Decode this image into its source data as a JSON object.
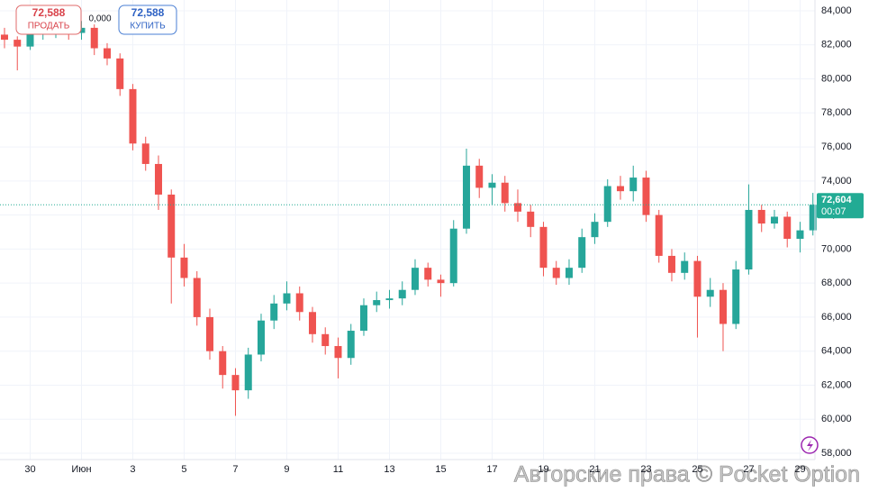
{
  "chart_data": {
    "type": "candlestick",
    "xticks": [
      {
        "value": 2,
        "label": "30"
      },
      {
        "value": 6,
        "label": "Июн"
      },
      {
        "value": 10,
        "label": "3"
      },
      {
        "value": 14,
        "label": "5"
      },
      {
        "value": 18,
        "label": "7"
      },
      {
        "value": 22,
        "label": "9"
      },
      {
        "value": 26,
        "label": "11"
      },
      {
        "value": 30,
        "label": "13"
      },
      {
        "value": 34,
        "label": "15"
      },
      {
        "value": 38,
        "label": "17"
      },
      {
        "value": 42,
        "label": "19"
      },
      {
        "value": 46,
        "label": "21"
      },
      {
        "value": 50,
        "label": "23"
      },
      {
        "value": 54,
        "label": "25"
      },
      {
        "value": 58,
        "label": "27"
      },
      {
        "value": 62,
        "label": "29"
      }
    ],
    "xlim": [
      -0.35,
      63.16
    ],
    "ylim": [
      57630,
      84635
    ],
    "yticks": [
      {
        "value": 58000,
        "label": "58,000"
      },
      {
        "value": 60000,
        "label": "60,000"
      },
      {
        "value": 62000,
        "label": "62,000"
      },
      {
        "value": 64000,
        "label": "64,000"
      },
      {
        "value": 66000,
        "label": "66,000"
      },
      {
        "value": 68000,
        "label": "68,000"
      },
      {
        "value": 70000,
        "label": "70,000"
      },
      {
        "value": 72000,
        "label": "72,000"
      },
      {
        "value": 74000,
        "label": "74,000"
      },
      {
        "value": 76000,
        "label": "76,000"
      },
      {
        "value": 78000,
        "label": "78,000"
      },
      {
        "value": 80000,
        "label": "80,000"
      },
      {
        "value": 82000,
        "label": "82,000"
      },
      {
        "value": 84000,
        "label": "84,000"
      }
    ],
    "grid": true,
    "up_color": "#26a69a",
    "down_color": "#ef5350",
    "open": [
      82600,
      82300,
      81900,
      82600,
      82800,
      82900,
      82700,
      83000,
      81800,
      81200,
      79400,
      76200,
      75000,
      73200,
      69500,
      68300,
      66000,
      64000,
      62600,
      61700,
      63800,
      65800,
      66800,
      67400,
      66300,
      65000,
      64300,
      63600,
      65200,
      66700,
      67000,
      67100,
      67600,
      68900,
      68200,
      68000,
      71200,
      74900,
      73600,
      73900,
      72700,
      72200,
      71300,
      68900,
      68300,
      68900,
      70700,
      71600,
      73700,
      73400,
      74200,
      72000,
      69600,
      68600,
      69300,
      67200,
      67600,
      65600,
      68800,
      72300,
      71500,
      71900,
      70600,
      71100
    ],
    "high": [
      83000,
      82500,
      82900,
      83200,
      83300,
      83200,
      83400,
      83200,
      82100,
      81500,
      79700,
      76600,
      75500,
      73500,
      70300,
      68700,
      66500,
      64300,
      63000,
      64200,
      66200,
      67300,
      68100,
      67800,
      66600,
      65400,
      64800,
      65600,
      67100,
      67500,
      67600,
      68100,
      69400,
      69200,
      68500,
      71700,
      75900,
      75300,
      74400,
      74300,
      73500,
      72600,
      71600,
      69300,
      69400,
      71200,
      72100,
      74100,
      74300,
      74900,
      74600,
      72300,
      70000,
      69800,
      69600,
      68300,
      68000,
      69300,
      73800,
      72600,
      72300,
      72200,
      71600,
      73300
    ],
    "low": [
      81800,
      80500,
      81700,
      82300,
      82400,
      82300,
      82300,
      81400,
      80800,
      79000,
      75800,
      74600,
      72300,
      66800,
      67800,
      65500,
      63500,
      61800,
      60200,
      61200,
      63400,
      65300,
      66400,
      65800,
      64500,
      63800,
      62400,
      63200,
      64900,
      66300,
      66500,
      66700,
      67300,
      67800,
      67200,
      67800,
      70900,
      73000,
      72600,
      72200,
      71600,
      70700,
      68400,
      67900,
      67900,
      68600,
      70300,
      71300,
      72900,
      72800,
      71600,
      69200,
      68100,
      68200,
      64800,
      66600,
      64000,
      65300,
      68500,
      71000,
      71200,
      70100,
      69800,
      70800
    ],
    "close": [
      82300,
      81900,
      82600,
      82800,
      82900,
      82700,
      83000,
      81800,
      81200,
      79400,
      76200,
      75000,
      73200,
      69500,
      68300,
      66000,
      64000,
      62600,
      61700,
      63800,
      65800,
      66800,
      67400,
      66300,
      65000,
      64300,
      63600,
      65200,
      66700,
      67000,
      67100,
      67600,
      68900,
      68200,
      68000,
      71200,
      74900,
      73600,
      73900,
      72700,
      72200,
      71300,
      68900,
      68300,
      68900,
      70700,
      71600,
      73700,
      73400,
      74200,
      72000,
      69600,
      68600,
      69300,
      67200,
      67600,
      65600,
      68800,
      72300,
      71500,
      71900,
      70600,
      71100,
      72604
    ],
    "current_price": {
      "value": 72604,
      "label": "72,604"
    },
    "timer": "00:07"
  },
  "trade_panel": {
    "sell_price": "72,588",
    "sell_label": "ПРОДАТЬ",
    "spread": "0,000",
    "buy_price": "72,588",
    "buy_label": "КУПИТЬ"
  },
  "watermark": "Авторские права © Pocket Option"
}
